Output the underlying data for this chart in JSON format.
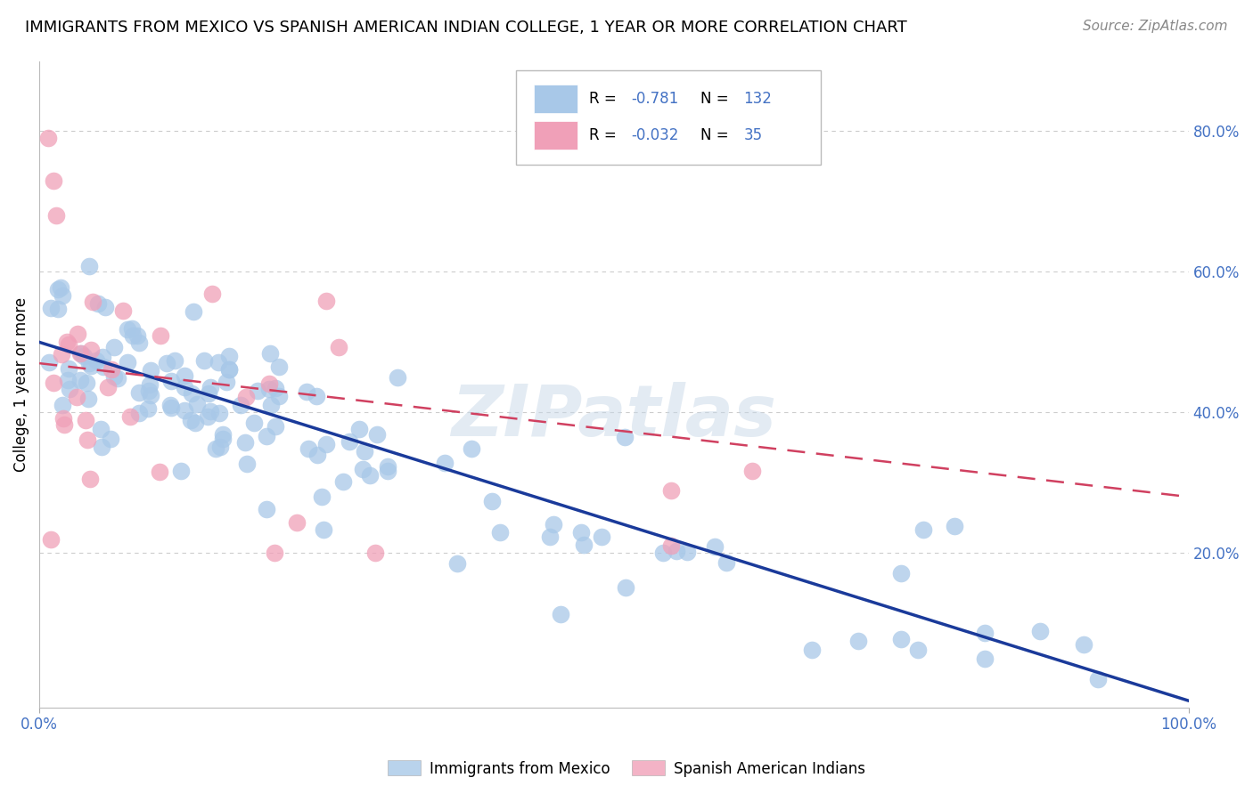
{
  "title": "IMMIGRANTS FROM MEXICO VS SPANISH AMERICAN INDIAN COLLEGE, 1 YEAR OR MORE CORRELATION CHART",
  "source": "Source: ZipAtlas.com",
  "ylabel": "College, 1 year or more",
  "legend_labels": [
    "Immigrants from Mexico",
    "Spanish American Indians"
  ],
  "legend_R": [
    "-0.781",
    "-0.032"
  ],
  "legend_N": [
    "132",
    "35"
  ],
  "blue_color": "#A8C8E8",
  "pink_color": "#F0A0B8",
  "blue_line_color": "#1A3A9A",
  "pink_line_color": "#D04060",
  "watermark": "ZIPatlas",
  "xlim": [
    0.0,
    1.0
  ],
  "ylim": [
    -0.02,
    0.9
  ],
  "grid_color": "#CCCCCC",
  "background_color": "#FFFFFF",
  "title_fontsize": 13,
  "tick_label_color": "#4472C4",
  "blue_scatter_seed": 42,
  "pink_scatter_seed": 99
}
